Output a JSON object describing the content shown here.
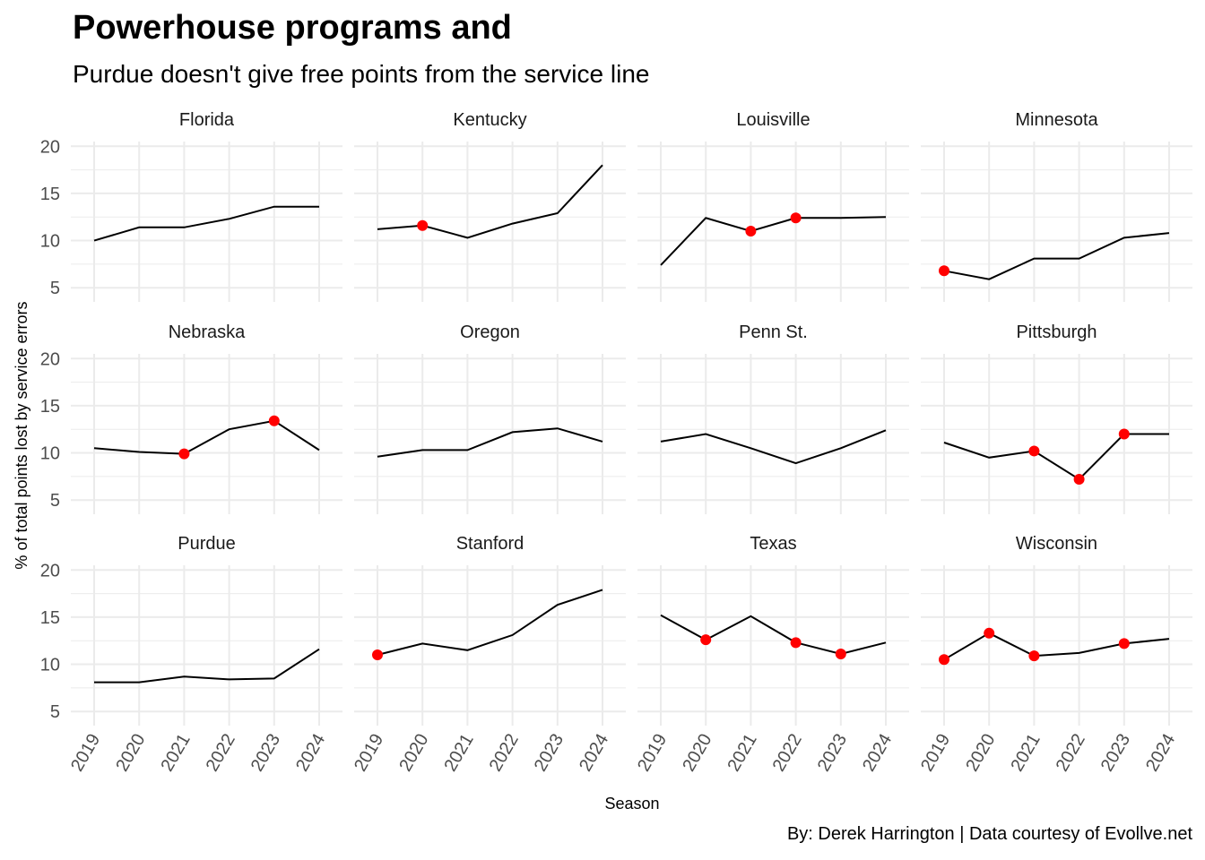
{
  "title": "Powerhouse programs and",
  "subtitle": "Purdue doesn't give free points from the service line",
  "caption": "By: Derek Harrington  |  Data courtesy of Evollve.net",
  "colors": {
    "line": "#000000",
    "highlight": "#ff0000",
    "grid": "#ebebeb",
    "text": "#4d4d4d"
  },
  "chart_data": {
    "type": "line",
    "layout": "facet 3x4",
    "xlabel": "Season",
    "ylabel": "% of total points lost by service errors",
    "x": [
      "2019",
      "2020",
      "2021",
      "2022",
      "2023",
      "2024"
    ],
    "ylim": [
      3.5,
      20.5
    ],
    "yticks": [
      5,
      10,
      15,
      20
    ],
    "grid": true,
    "panels": [
      {
        "name": "Florida",
        "values": [
          10.0,
          11.4,
          11.4,
          12.3,
          13.6,
          13.6
        ],
        "highlight": []
      },
      {
        "name": "Kentucky",
        "values": [
          11.2,
          11.6,
          10.3,
          11.8,
          12.9,
          18.0
        ],
        "highlight": [
          "2020"
        ]
      },
      {
        "name": "Louisville",
        "values": [
          7.4,
          12.4,
          11.0,
          12.4,
          12.4,
          12.5
        ],
        "highlight": [
          "2021",
          "2022"
        ]
      },
      {
        "name": "Minnesota",
        "values": [
          6.8,
          5.9,
          8.1,
          8.1,
          10.3,
          10.8
        ],
        "highlight": [
          "2019"
        ]
      },
      {
        "name": "Nebraska",
        "values": [
          10.5,
          10.1,
          9.9,
          12.5,
          13.4,
          10.3
        ],
        "highlight": [
          "2021",
          "2023"
        ]
      },
      {
        "name": "Oregon",
        "values": [
          9.6,
          10.3,
          10.3,
          12.2,
          12.6,
          11.2
        ],
        "highlight": []
      },
      {
        "name": "Penn St.",
        "values": [
          11.2,
          12.0,
          10.5,
          8.9,
          10.5,
          12.4
        ],
        "highlight": []
      },
      {
        "name": "Pittsburgh",
        "values": [
          11.1,
          9.5,
          10.2,
          7.2,
          12.0,
          12.0
        ],
        "highlight": [
          "2021",
          "2022",
          "2023"
        ]
      },
      {
        "name": "Purdue",
        "values": [
          8.1,
          8.1,
          8.7,
          8.4,
          8.5,
          11.6
        ],
        "highlight": []
      },
      {
        "name": "Stanford",
        "values": [
          11.0,
          12.2,
          11.5,
          13.1,
          16.3,
          17.9
        ],
        "highlight": [
          "2019"
        ]
      },
      {
        "name": "Texas",
        "values": [
          15.2,
          12.6,
          15.1,
          12.3,
          11.1,
          12.3
        ],
        "highlight": [
          "2020",
          "2022",
          "2023"
        ]
      },
      {
        "name": "Wisconsin",
        "values": [
          10.5,
          13.3,
          10.9,
          11.2,
          12.2,
          12.7
        ],
        "highlight": [
          "2019",
          "2020",
          "2021",
          "2023"
        ]
      }
    ]
  }
}
